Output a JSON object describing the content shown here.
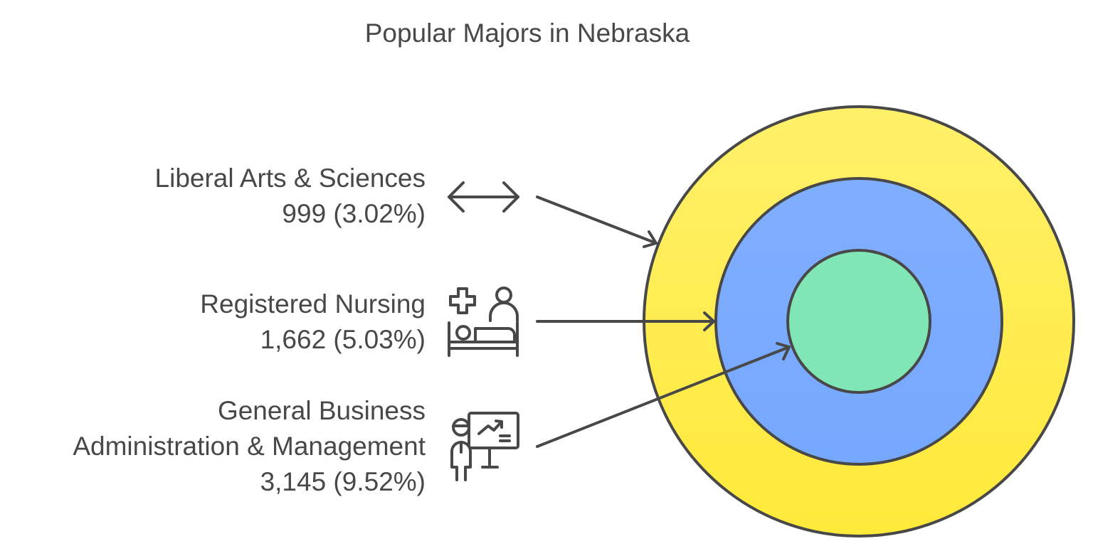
{
  "title": "Popular Majors in Nebraska",
  "colors": {
    "outer_ring": "#FFE93A",
    "middle_ring": "#7AABFF",
    "inner_circle": "#80E6B6",
    "stroke": "#484848"
  },
  "majors": [
    {
      "name_lines": [
        "Liberal Arts & Sciences"
      ],
      "value": "999 (3.02%)",
      "icon": "double-arrow-icon",
      "ring": "outer"
    },
    {
      "name_lines": [
        "Registered Nursing"
      ],
      "value": "1,662 (5.03%)",
      "icon": "nurse-patient-bed-icon",
      "ring": "middle"
    },
    {
      "name_lines": [
        "General Business",
        "Administration & Management"
      ],
      "value": "3,145 (9.52%)",
      "icon": "presenter-chart-icon",
      "ring": "inner"
    }
  ]
}
